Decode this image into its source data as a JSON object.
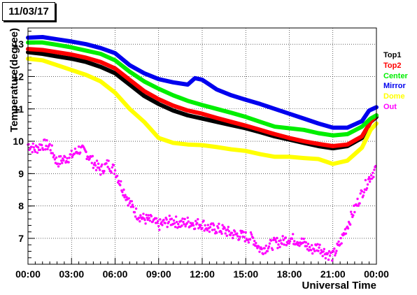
{
  "date_label": "11/03/17",
  "chart_data": {
    "type": "line",
    "title": "",
    "xlabel": "Universal Time",
    "ylabel": "Temperature(degree)",
    "xlim": [
      0,
      24
    ],
    "ylim": [
      6.2,
      13.5
    ],
    "grid": true,
    "legend_position": "right",
    "x_ticks": [
      "00:00",
      "03:00",
      "06:00",
      "09:00",
      "12:00",
      "15:00",
      "18:00",
      "21:00",
      "00:00"
    ],
    "y_ticks": [
      "7",
      "8",
      "9",
      "10",
      "11",
      "12",
      "13"
    ],
    "series": [
      {
        "name": "Top1",
        "color": "#000000",
        "points": [
          [
            0,
            12.75
          ],
          [
            1,
            12.7
          ],
          [
            2,
            12.62
          ],
          [
            3,
            12.55
          ],
          [
            4,
            12.45
          ],
          [
            5,
            12.3
          ],
          [
            6,
            12.1
          ],
          [
            7,
            11.75
          ],
          [
            8,
            11.4
          ],
          [
            9,
            11.15
          ],
          [
            10,
            10.95
          ],
          [
            11,
            10.8
          ],
          [
            12,
            10.7
          ],
          [
            13,
            10.6
          ],
          [
            14,
            10.5
          ],
          [
            15,
            10.4
          ],
          [
            16,
            10.28
          ],
          [
            17,
            10.15
          ],
          [
            18,
            10.05
          ],
          [
            19,
            9.95
          ],
          [
            20,
            9.85
          ],
          [
            21,
            9.78
          ],
          [
            22,
            9.85
          ],
          [
            23,
            10.1
          ],
          [
            23.6,
            10.6
          ],
          [
            24,
            10.75
          ]
        ]
      },
      {
        "name": "Top2",
        "color": "#ff0000",
        "points": [
          [
            0,
            12.85
          ],
          [
            1,
            12.82
          ],
          [
            2,
            12.75
          ],
          [
            3,
            12.68
          ],
          [
            4,
            12.58
          ],
          [
            5,
            12.45
          ],
          [
            6,
            12.25
          ],
          [
            7,
            11.9
          ],
          [
            8,
            11.55
          ],
          [
            9,
            11.3
          ],
          [
            10,
            11.1
          ],
          [
            11,
            10.95
          ],
          [
            12,
            10.85
          ],
          [
            13,
            10.72
          ],
          [
            14,
            10.6
          ],
          [
            15,
            10.48
          ],
          [
            16,
            10.35
          ],
          [
            17,
            10.22
          ],
          [
            18,
            10.1
          ],
          [
            19,
            10.0
          ],
          [
            20,
            9.92
          ],
          [
            21,
            9.85
          ],
          [
            22,
            9.9
          ],
          [
            23,
            10.15
          ],
          [
            23.6,
            10.6
          ],
          [
            24,
            10.8
          ]
        ]
      },
      {
        "name": "Center",
        "color": "#00ee00",
        "points": [
          [
            0,
            13.05
          ],
          [
            1,
            13.05
          ],
          [
            2,
            12.98
          ],
          [
            3,
            12.9
          ],
          [
            4,
            12.8
          ],
          [
            5,
            12.7
          ],
          [
            6,
            12.5
          ],
          [
            7,
            12.15
          ],
          [
            8,
            11.85
          ],
          [
            9,
            11.62
          ],
          [
            10,
            11.42
          ],
          [
            11,
            11.25
          ],
          [
            12,
            11.12
          ],
          [
            13,
            11.0
          ],
          [
            14,
            10.88
          ],
          [
            15,
            10.75
          ],
          [
            16,
            10.6
          ],
          [
            17,
            10.45
          ],
          [
            18,
            10.4
          ],
          [
            19,
            10.35
          ],
          [
            20,
            10.25
          ],
          [
            21,
            10.18
          ],
          [
            22,
            10.22
          ],
          [
            23,
            10.45
          ],
          [
            23.6,
            10.7
          ],
          [
            24,
            10.8
          ]
        ]
      },
      {
        "name": "Mirror",
        "color": "#0000ee",
        "points": [
          [
            0,
            13.2
          ],
          [
            1,
            13.22
          ],
          [
            2,
            13.15
          ],
          [
            3,
            13.08
          ],
          [
            4,
            13.0
          ],
          [
            5,
            12.88
          ],
          [
            6,
            12.72
          ],
          [
            7,
            12.35
          ],
          [
            8,
            12.1
          ],
          [
            9,
            11.92
          ],
          [
            10,
            11.82
          ],
          [
            11,
            11.75
          ],
          [
            11.5,
            11.95
          ],
          [
            12,
            11.9
          ],
          [
            12.5,
            11.75
          ],
          [
            13,
            11.6
          ],
          [
            14,
            11.42
          ],
          [
            15,
            11.28
          ],
          [
            16,
            11.15
          ],
          [
            17,
            11.0
          ],
          [
            18,
            10.85
          ],
          [
            19,
            10.7
          ],
          [
            20,
            10.55
          ],
          [
            21,
            10.42
          ],
          [
            22,
            10.42
          ],
          [
            23,
            10.62
          ],
          [
            23.5,
            10.95
          ],
          [
            24,
            11.05
          ]
        ]
      },
      {
        "name": "Dome",
        "color": "#ffff00",
        "points": [
          [
            0,
            12.55
          ],
          [
            1,
            12.5
          ],
          [
            2,
            12.35
          ],
          [
            3,
            12.2
          ],
          [
            4,
            12.05
          ],
          [
            5,
            11.85
          ],
          [
            6,
            11.5
          ],
          [
            7,
            11.0
          ],
          [
            8,
            10.6
          ],
          [
            9,
            10.1
          ],
          [
            10,
            9.95
          ],
          [
            11,
            9.9
          ],
          [
            12,
            9.88
          ],
          [
            13,
            9.82
          ],
          [
            14,
            9.75
          ],
          [
            15,
            9.7
          ],
          [
            16,
            9.6
          ],
          [
            17,
            9.52
          ],
          [
            18,
            9.52
          ],
          [
            19,
            9.48
          ],
          [
            20,
            9.45
          ],
          [
            21,
            9.3
          ],
          [
            22,
            9.4
          ],
          [
            23,
            9.8
          ],
          [
            23.6,
            10.35
          ],
          [
            24,
            10.55
          ]
        ]
      },
      {
        "name": "Out",
        "color": "#ff00ff",
        "style": "scatter",
        "points": [
          [
            0,
            9.9
          ],
          [
            0.5,
            9.75
          ],
          [
            1,
            9.9
          ],
          [
            1.5,
            9.85
          ],
          [
            2,
            9.35
          ],
          [
            2.5,
            9.45
          ],
          [
            3,
            9.55
          ],
          [
            3.5,
            9.75
          ],
          [
            4,
            9.65
          ],
          [
            4.5,
            9.35
          ],
          [
            5,
            9.1
          ],
          [
            5.5,
            9.3
          ],
          [
            6,
            9.1
          ],
          [
            6.5,
            8.55
          ],
          [
            7,
            8.1
          ],
          [
            7.5,
            7.75
          ],
          [
            8,
            7.6
          ],
          [
            8.5,
            7.55
          ],
          [
            9,
            7.4
          ],
          [
            9.5,
            7.5
          ],
          [
            10,
            7.55
          ],
          [
            10.5,
            7.45
          ],
          [
            11,
            7.5
          ],
          [
            11.5,
            7.45
          ],
          [
            12,
            7.45
          ],
          [
            12.5,
            7.3
          ],
          [
            13,
            7.3
          ],
          [
            13.5,
            7.25
          ],
          [
            14,
            7.15
          ],
          [
            14.5,
            7.1
          ],
          [
            15,
            7.05
          ],
          [
            15.5,
            7.0
          ],
          [
            16,
            6.65
          ],
          [
            16.5,
            6.75
          ],
          [
            17,
            6.85
          ],
          [
            17.5,
            6.9
          ],
          [
            18,
            7.0
          ],
          [
            18.5,
            6.95
          ],
          [
            19,
            6.85
          ],
          [
            19.5,
            6.65
          ],
          [
            20,
            6.75
          ],
          [
            20.5,
            6.55
          ],
          [
            21,
            6.45
          ],
          [
            21.5,
            6.85
          ],
          [
            22,
            7.4
          ],
          [
            22.5,
            7.9
          ],
          [
            23,
            8.4
          ],
          [
            23.5,
            8.85
          ],
          [
            24,
            9.2
          ]
        ]
      }
    ]
  }
}
